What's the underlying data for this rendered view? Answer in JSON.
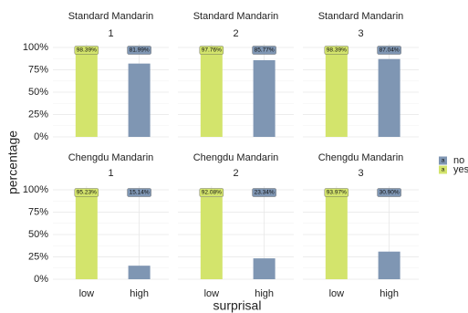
{
  "axis_labels": {
    "x": "surprisal",
    "y": "percentage"
  },
  "legend": {
    "entries": [
      {
        "name": "no",
        "color": "#7f96b3",
        "key": "a"
      },
      {
        "name": "yes",
        "color": "#d3e46c",
        "key": "a"
      }
    ]
  },
  "chart_data": [
    {
      "type": "bar",
      "title": "Standard Mandarin",
      "subtitle": "1",
      "categories": [
        "low",
        "high"
      ],
      "values": [
        98.39,
        81.99
      ],
      "value_labels": [
        "98.39%",
        "81.99%"
      ],
      "colors": [
        "#d3e46c",
        "#7f96b3"
      ],
      "ylim": [
        0,
        100
      ],
      "yticks": [
        {
          "value": 0,
          "label": "0%"
        },
        {
          "value": 25,
          "label": "25%"
        },
        {
          "value": 50,
          "label": "50%"
        },
        {
          "value": 75,
          "label": "75%"
        },
        {
          "value": 100,
          "label": "100%"
        }
      ],
      "grid": true
    },
    {
      "type": "bar",
      "title": "Standard Mandarin",
      "subtitle": "2",
      "categories": [
        "low",
        "high"
      ],
      "values": [
        97.76,
        85.77
      ],
      "value_labels": [
        "97.76%",
        "85.77%"
      ],
      "colors": [
        "#d3e46c",
        "#7f96b3"
      ],
      "ylim": [
        0,
        100
      ],
      "yticks": [
        {
          "value": 0,
          "label": "0%"
        },
        {
          "value": 25,
          "label": "25%"
        },
        {
          "value": 50,
          "label": "50%"
        },
        {
          "value": 75,
          "label": "75%"
        },
        {
          "value": 100,
          "label": "100%"
        }
      ],
      "grid": true
    },
    {
      "type": "bar",
      "title": "Standard Mandarin",
      "subtitle": "3",
      "categories": [
        "low",
        "high"
      ],
      "values": [
        98.39,
        87.04
      ],
      "value_labels": [
        "98.39%",
        "87.04%"
      ],
      "colors": [
        "#d3e46c",
        "#7f96b3"
      ],
      "ylim": [
        0,
        100
      ],
      "yticks": [
        {
          "value": 0,
          "label": "0%"
        },
        {
          "value": 25,
          "label": "25%"
        },
        {
          "value": 50,
          "label": "50%"
        },
        {
          "value": 75,
          "label": "75%"
        },
        {
          "value": 100,
          "label": "100%"
        }
      ],
      "grid": true
    },
    {
      "type": "bar",
      "title": "Chengdu Mandarin",
      "subtitle": "1",
      "categories": [
        "low",
        "high"
      ],
      "values": [
        95.23,
        15.14
      ],
      "value_labels": [
        "95.23%",
        "15.14%"
      ],
      "colors": [
        "#d3e46c",
        "#7f96b3"
      ],
      "ylim": [
        0,
        100
      ],
      "yticks": [
        {
          "value": 0,
          "label": "0%"
        },
        {
          "value": 25,
          "label": "25%"
        },
        {
          "value": 50,
          "label": "50%"
        },
        {
          "value": 75,
          "label": "75%"
        },
        {
          "value": 100,
          "label": "100%"
        }
      ],
      "grid": true
    },
    {
      "type": "bar",
      "title": "Chengdu Mandarin",
      "subtitle": "2",
      "categories": [
        "low",
        "high"
      ],
      "values": [
        92.08,
        23.34
      ],
      "value_labels": [
        "92.08%",
        "23.34%"
      ],
      "colors": [
        "#d3e46c",
        "#7f96b3"
      ],
      "ylim": [
        0,
        100
      ],
      "yticks": [
        {
          "value": 0,
          "label": "0%"
        },
        {
          "value": 25,
          "label": "25%"
        },
        {
          "value": 50,
          "label": "50%"
        },
        {
          "value": 75,
          "label": "75%"
        },
        {
          "value": 100,
          "label": "100%"
        }
      ],
      "grid": true
    },
    {
      "type": "bar",
      "title": "Chengdu Mandarin",
      "subtitle": "3",
      "categories": [
        "low",
        "high"
      ],
      "values": [
        93.97,
        30.9
      ],
      "value_labels": [
        "93.97%",
        "30.90%"
      ],
      "colors": [
        "#d3e46c",
        "#7f96b3"
      ],
      "ylim": [
        0,
        100
      ],
      "yticks": [
        {
          "value": 0,
          "label": "0%"
        },
        {
          "value": 25,
          "label": "25%"
        },
        {
          "value": 50,
          "label": "50%"
        },
        {
          "value": 75,
          "label": "75%"
        },
        {
          "value": 100,
          "label": "100%"
        }
      ],
      "grid": true
    }
  ]
}
